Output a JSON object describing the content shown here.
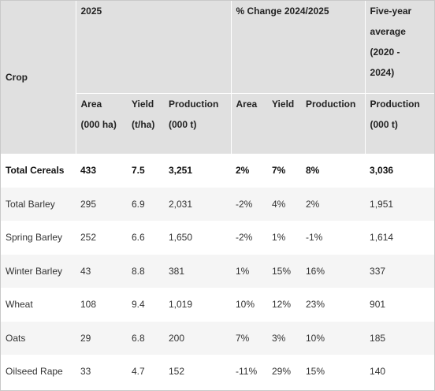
{
  "header": {
    "crop": "Crop",
    "group_2025": "2025",
    "group_change": "% Change 2024/2025",
    "group_avg_lines": [
      "Five-year",
      "average",
      "(2020 -",
      "2024)"
    ],
    "sub": {
      "area": [
        "Area",
        "(000 ha)"
      ],
      "yield": [
        "Yield",
        "(t/ha)"
      ],
      "production": [
        "Production",
        "(000 t)"
      ],
      "change_area": "Area",
      "change_yield": "Yield",
      "change_production": "Production",
      "avg_production": [
        "Production",
        "(000 t)"
      ]
    }
  },
  "rows": [
    {
      "crop": "Total Cereals",
      "area": "433",
      "yield": "7.5",
      "production": "3,251",
      "chg_area": "2%",
      "chg_yield": "7%",
      "chg_production": "8%",
      "avg": "3,036"
    },
    {
      "crop": "Total Barley",
      "area": "295",
      "yield": "6.9",
      "production": "2,031",
      "chg_area": "-2%",
      "chg_yield": "4%",
      "chg_production": "2%",
      "avg": "1,951"
    },
    {
      "crop": "Spring Barley",
      "area": "252",
      "yield": "6.6",
      "production": "1,650",
      "chg_area": "-2%",
      "chg_yield": "1%",
      "chg_production": "-1%",
      "avg": "1,614"
    },
    {
      "crop": "Winter Barley",
      "area": "43",
      "yield": "8.8",
      "production": "381",
      "chg_area": "1%",
      "chg_yield": "15%",
      "chg_production": "16%",
      "avg": "337"
    },
    {
      "crop": "Wheat",
      "area": "108",
      "yield": "9.4",
      "production": "1,019",
      "chg_area": "10%",
      "chg_yield": "12%",
      "chg_production": "23%",
      "avg": "901"
    },
    {
      "crop": "Oats",
      "area": "29",
      "yield": "6.8",
      "production": "200",
      "chg_area": "7%",
      "chg_yield": "3%",
      "chg_production": "10%",
      "avg": "185"
    },
    {
      "crop": "Oilseed Rape",
      "area": "33",
      "yield": "4.7",
      "production": "152",
      "chg_area": "-11%",
      "chg_yield": "29%",
      "chg_production": "15%",
      "avg": "140"
    }
  ]
}
